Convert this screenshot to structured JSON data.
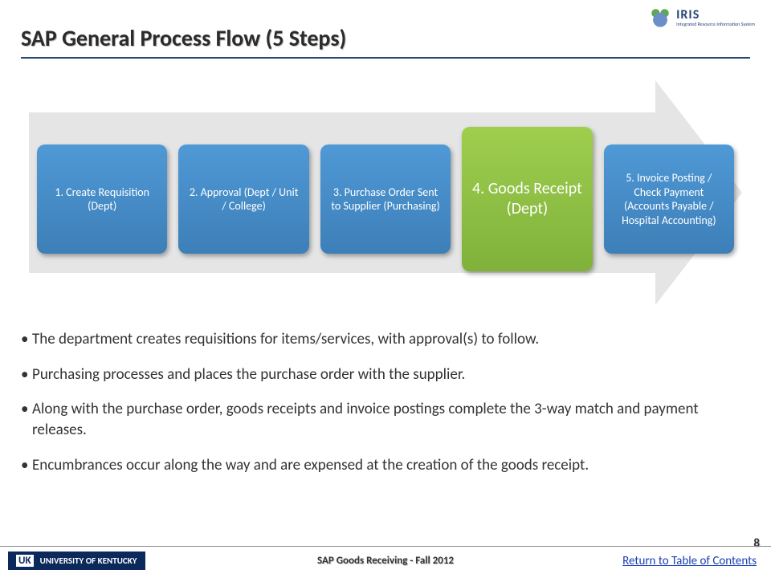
{
  "logo": {
    "name": "IRIS",
    "subtitle": "Integrated Resource Information System"
  },
  "title": "SAP General Process Flow (5 Steps)",
  "flow": {
    "arrow_bg": "#e5e5e5",
    "step_default_bg": "#3d7fb8",
    "step_highlight_bg": "#7fb13b",
    "step_text_color": "#ffffff",
    "highlight_index": 3,
    "steps": [
      {
        "label": "1. Create Requisition (Dept)"
      },
      {
        "label": "2. Approval (Dept / Unit / College)"
      },
      {
        "label": "3. Purchase Order Sent to Supplier (Purchasing)"
      },
      {
        "label": "4. Goods Receipt (Dept)"
      },
      {
        "label": "5. Invoice Posting / Check Payment (Accounts Payable / Hospital Accounting)"
      }
    ]
  },
  "bullets": [
    "The department creates requisitions for items/services, with approval(s) to follow.",
    "Purchasing processes and places the purchase order with the supplier.",
    "Along with the purchase order, goods receipts and invoice postings complete the 3-way match and payment releases.",
    "Encumbrances occur along the way and are expensed at the creation of the goods receipt."
  ],
  "footer": {
    "uk_badge_prefix": "UK",
    "uk_badge_text": "UNIVERSITY OF KENTUCKY",
    "center": "SAP Goods Receiving - Fall 2012",
    "link": "Return to Table of Contents",
    "page": "8"
  }
}
